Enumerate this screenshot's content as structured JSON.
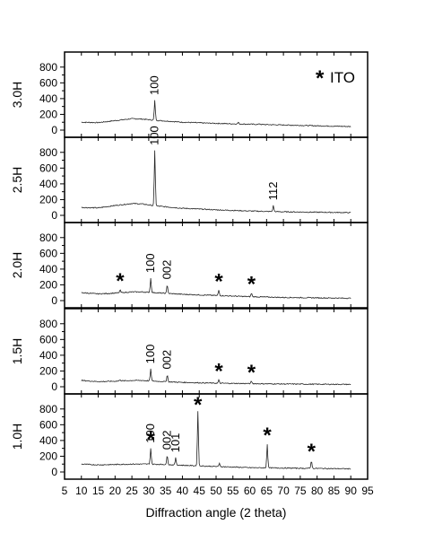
{
  "chart_data": {
    "type": "line",
    "xlabel": "Diffraction angle (2 theta)",
    "xlim": [
      5,
      95
    ],
    "x_ticks": [
      5,
      10,
      15,
      20,
      25,
      30,
      35,
      40,
      45,
      50,
      55,
      60,
      65,
      70,
      75,
      80,
      85,
      90,
      95
    ],
    "legend": {
      "marker": "*",
      "label": "ITO",
      "position": "top-right"
    },
    "panels": [
      {
        "ylabel": "3.0H",
        "ylim": [
          0,
          900
        ],
        "y_ticks": [
          0,
          200,
          400,
          600,
          800
        ],
        "profile": [
          [
            10,
            100
          ],
          [
            15,
            95
          ],
          [
            20,
            120
          ],
          [
            25,
            145
          ],
          [
            28,
            140
          ],
          [
            32,
            125
          ],
          [
            40,
            100
          ],
          [
            50,
            85
          ],
          [
            60,
            75
          ],
          [
            70,
            65
          ],
          [
            80,
            55
          ],
          [
            90,
            45
          ]
        ],
        "peaks": [
          {
            "x": 31.8,
            "height": 250,
            "label": "100"
          },
          {
            "x": 56.6,
            "height": 20,
            "label": ""
          },
          {
            "x": 62.9,
            "height": 10,
            "label": ""
          }
        ],
        "stars": []
      },
      {
        "ylabel": "2.5H",
        "ylim": [
          0,
          900
        ],
        "y_ticks": [
          0,
          200,
          400,
          600,
          800
        ],
        "profile": [
          [
            10,
            100
          ],
          [
            15,
            95
          ],
          [
            20,
            125
          ],
          [
            25,
            150
          ],
          [
            28,
            145
          ],
          [
            32,
            120
          ],
          [
            40,
            90
          ],
          [
            50,
            70
          ],
          [
            60,
            55
          ],
          [
            70,
            45
          ],
          [
            80,
            40
          ],
          [
            90,
            35
          ]
        ],
        "peaks": [
          {
            "x": 31.8,
            "height": 700,
            "label": "100"
          },
          {
            "x": 67.0,
            "height": 75,
            "label": "112"
          }
        ],
        "stars": []
      },
      {
        "ylabel": "2.0H",
        "ylim": [
          0,
          900
        ],
        "y_ticks": [
          0,
          200,
          400,
          600,
          800
        ],
        "profile": [
          [
            10,
            100
          ],
          [
            15,
            85
          ],
          [
            20,
            95
          ],
          [
            25,
            110
          ],
          [
            28,
            110
          ],
          [
            32,
            100
          ],
          [
            40,
            80
          ],
          [
            50,
            65
          ],
          [
            60,
            50
          ],
          [
            70,
            40
          ],
          [
            80,
            35
          ],
          [
            90,
            30
          ]
        ],
        "peaks": [
          {
            "x": 21.5,
            "height": 35,
            "label": ""
          },
          {
            "x": 30.6,
            "height": 180,
            "label": "100"
          },
          {
            "x": 35.5,
            "height": 110,
            "label": "002"
          },
          {
            "x": 50.8,
            "height": 70,
            "label": ""
          },
          {
            "x": 60.5,
            "height": 45,
            "label": ""
          }
        ],
        "stars": [
          {
            "x": 21.5
          },
          {
            "x": 50.8
          },
          {
            "x": 60.5
          }
        ]
      },
      {
        "ylabel": "1.5H",
        "ylim": [
          0,
          900
        ],
        "y_ticks": [
          0,
          200,
          400,
          600,
          800
        ],
        "profile": [
          [
            10,
            80
          ],
          [
            15,
            65
          ],
          [
            20,
            70
          ],
          [
            25,
            80
          ],
          [
            28,
            80
          ],
          [
            32,
            70
          ],
          [
            40,
            55
          ],
          [
            50,
            45
          ],
          [
            60,
            40
          ],
          [
            70,
            35
          ],
          [
            80,
            32
          ],
          [
            90,
            30
          ]
        ],
        "peaks": [
          {
            "x": 21.5,
            "height": 20,
            "label": ""
          },
          {
            "x": 30.6,
            "height": 150,
            "label": "100"
          },
          {
            "x": 35.5,
            "height": 90,
            "label": "002"
          },
          {
            "x": 50.8,
            "height": 40,
            "label": ""
          },
          {
            "x": 60.5,
            "height": 30,
            "label": ""
          }
        ],
        "stars": [
          {
            "x": 50.8
          },
          {
            "x": 60.5
          }
        ]
      },
      {
        "ylabel": "1.0H",
        "ylim": [
          0,
          900
        ],
        "y_ticks": [
          0,
          200,
          400,
          600,
          800
        ],
        "profile": [
          [
            10,
            100
          ],
          [
            15,
            90
          ],
          [
            20,
            95
          ],
          [
            25,
            100
          ],
          [
            30,
            100
          ],
          [
            35,
            95
          ],
          [
            40,
            85
          ],
          [
            50,
            70
          ],
          [
            60,
            55
          ],
          [
            70,
            50
          ],
          [
            80,
            45
          ],
          [
            90,
            40
          ]
        ],
        "peaks": [
          {
            "x": 30.6,
            "height": 200,
            "label": "100"
          },
          {
            "x": 35.5,
            "height": 120,
            "label": "002"
          },
          {
            "x": 38.0,
            "height": 90,
            "label": "101"
          },
          {
            "x": 44.6,
            "height": 700,
            "label": ""
          },
          {
            "x": 51.0,
            "height": 40,
            "label": ""
          },
          {
            "x": 65.2,
            "height": 300,
            "label": ""
          },
          {
            "x": 78.3,
            "height": 100,
            "label": ""
          }
        ],
        "stars": [
          {
            "x": 30.6
          },
          {
            "x": 44.6
          },
          {
            "x": 65.2
          },
          {
            "x": 78.3
          }
        ]
      }
    ]
  }
}
